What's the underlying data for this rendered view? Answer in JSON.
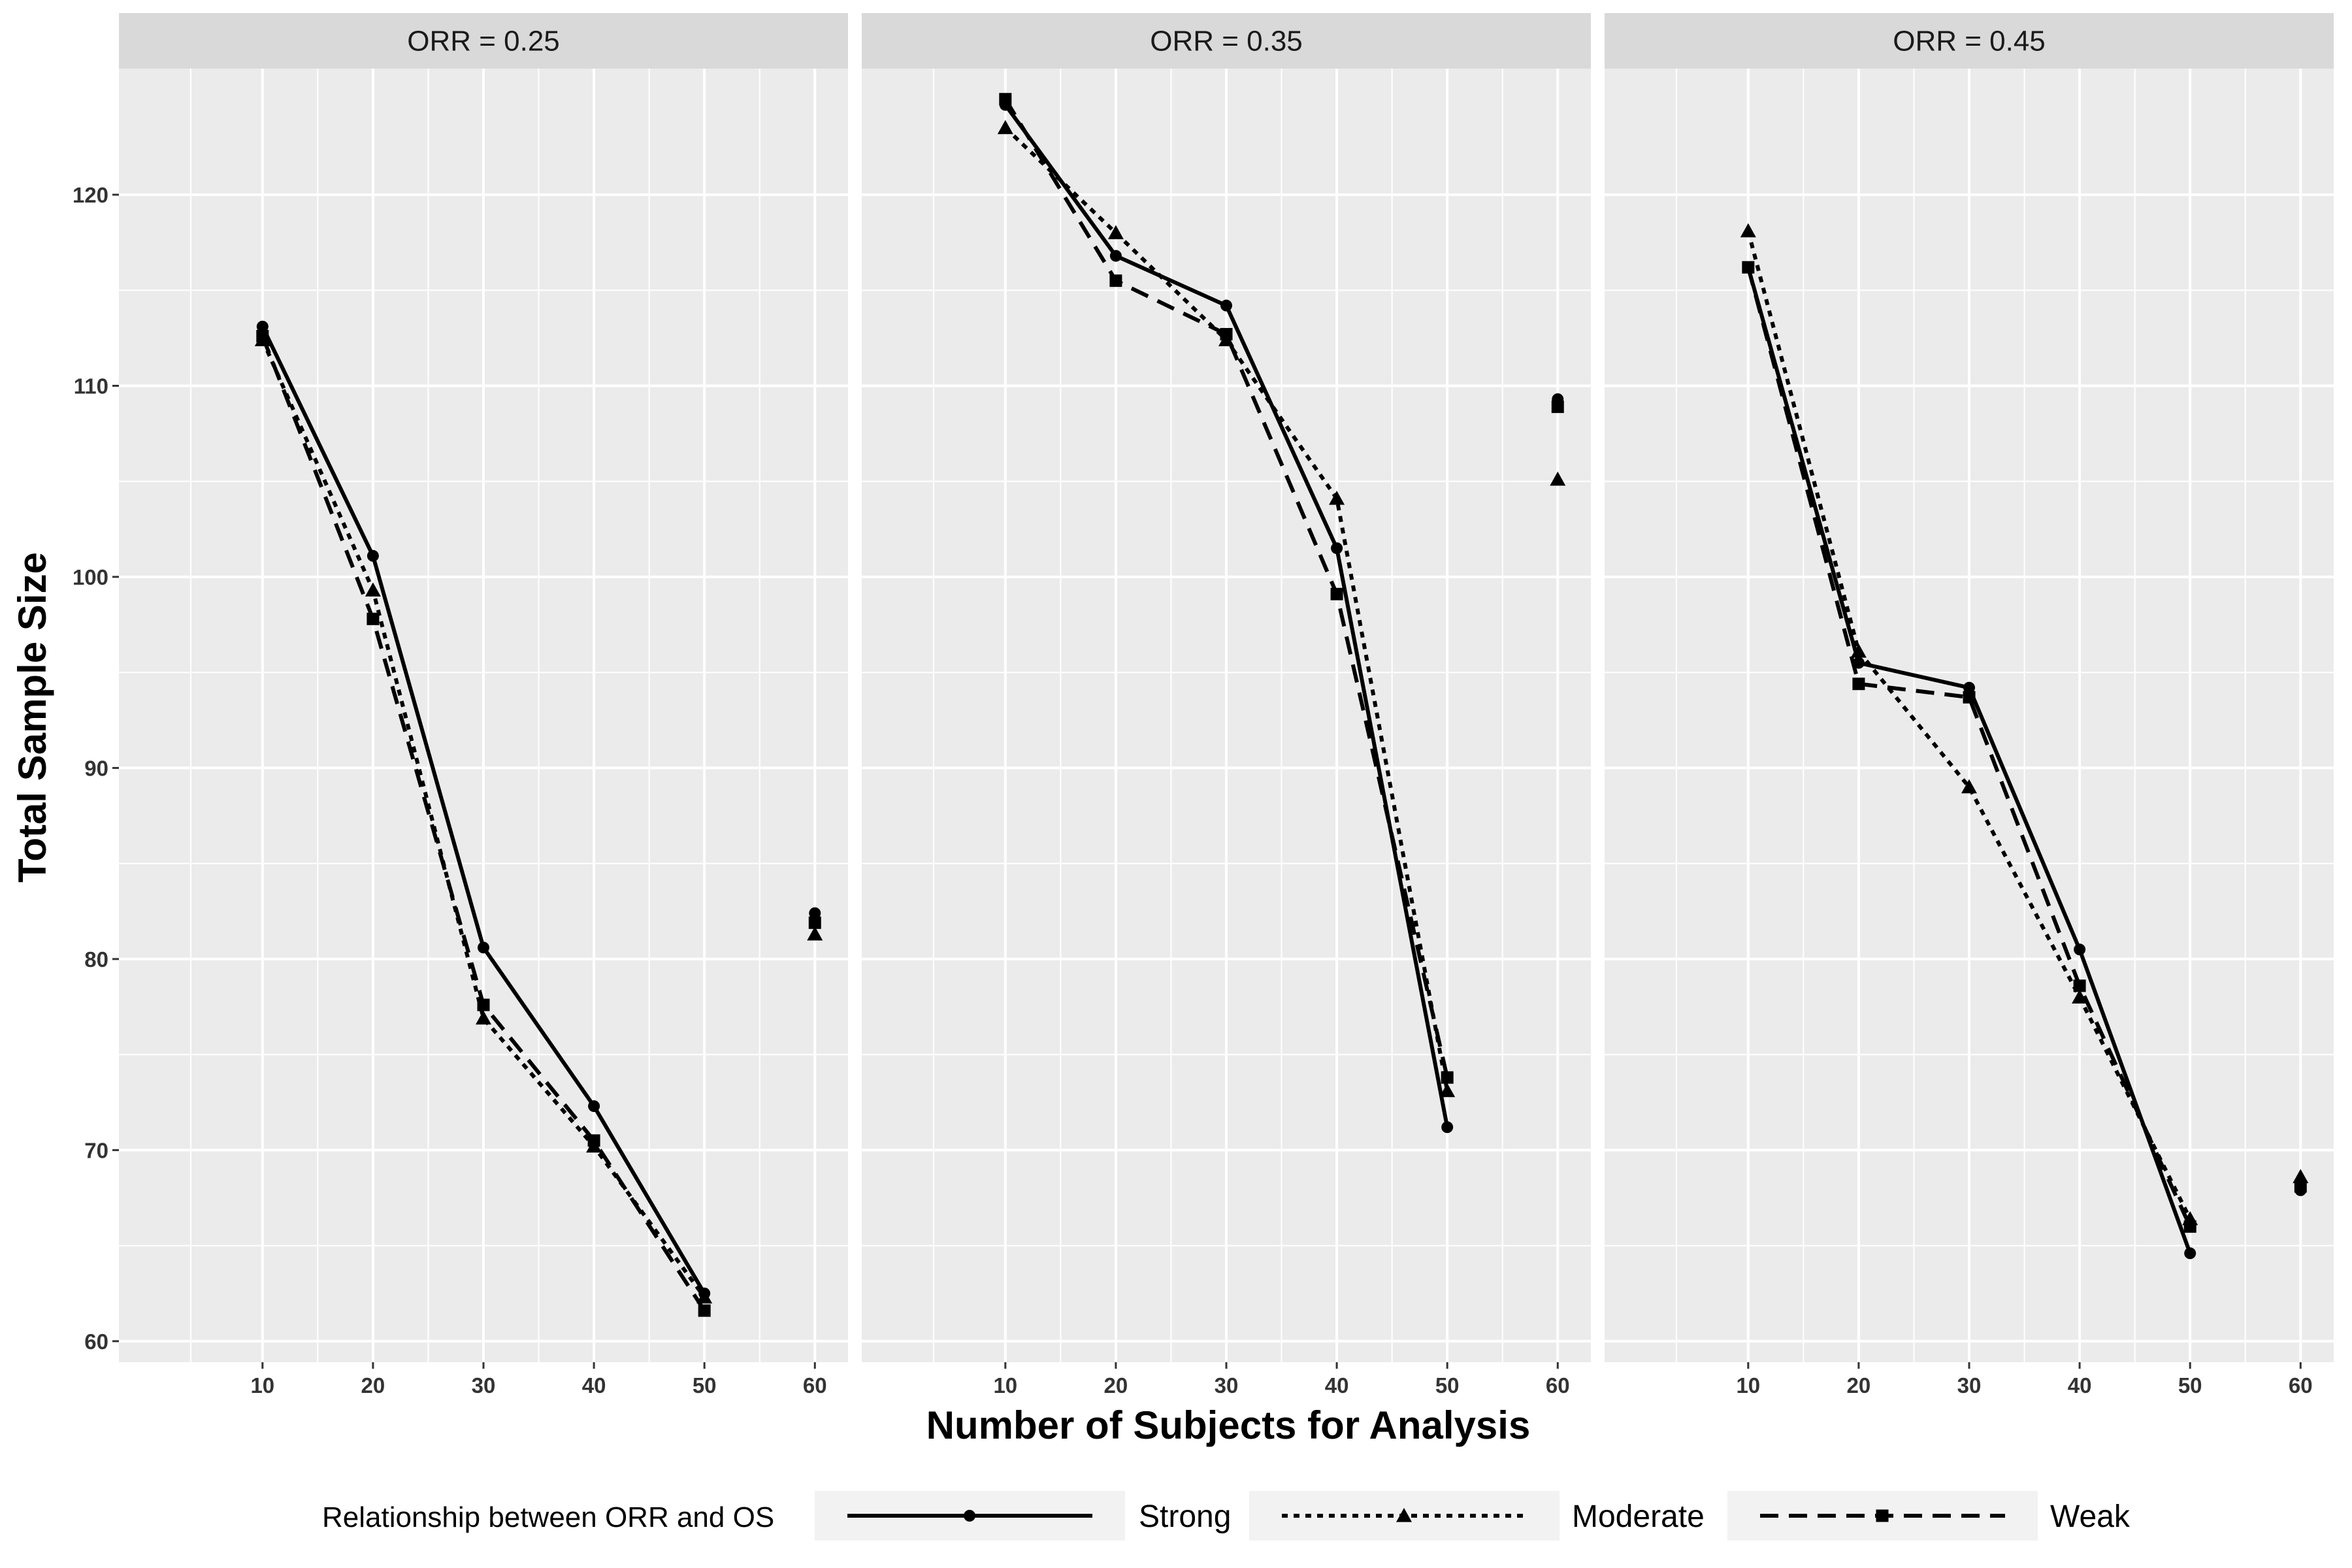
{
  "chart_data": {
    "type": "line",
    "facet_label_prefix": "ORR = ",
    "facets": [
      {
        "label": "ORR = 0.25",
        "series": [
          {
            "name": "Strong",
            "x": [
              10,
              20,
              30,
              40,
              50
            ],
            "values": [
              113.1,
              101.1,
              80.6,
              72.3,
              62.5
            ]
          },
          {
            "name": "Moderate",
            "x": [
              10,
              20,
              30,
              40,
              50
            ],
            "values": [
              112.4,
              99.3,
              76.9,
              70.2,
              62.3
            ]
          },
          {
            "name": "Weak",
            "x": [
              10,
              20,
              30,
              40,
              50
            ],
            "values": [
              112.6,
              97.8,
              77.6,
              70.5,
              61.6
            ]
          }
        ],
        "unconnected": [
          {
            "name": "Strong",
            "x": 60,
            "y": 82.4
          },
          {
            "name": "Moderate",
            "x": 60,
            "y": 81.3
          },
          {
            "name": "Weak",
            "x": 60,
            "y": 81.9
          }
        ]
      },
      {
        "label": "ORR = 0.35",
        "series": [
          {
            "name": "Strong",
            "x": [
              10,
              20,
              30,
              40,
              50
            ],
            "values": [
              124.7,
              116.8,
              114.2,
              101.5,
              71.2
            ]
          },
          {
            "name": "Moderate",
            "x": [
              10,
              20,
              30,
              40,
              50
            ],
            "values": [
              123.5,
              118.0,
              112.4,
              104.1,
              73.1
            ]
          },
          {
            "name": "Weak",
            "x": [
              10,
              20,
              30,
              40,
              50
            ],
            "values": [
              125.0,
              115.5,
              112.7,
              99.1,
              73.8
            ]
          }
        ],
        "unconnected": [
          {
            "name": "Strong",
            "x": 60,
            "y": 109.3
          },
          {
            "name": "Moderate",
            "x": 60,
            "y": 105.1
          },
          {
            "name": "Weak",
            "x": 60,
            "y": 108.9
          }
        ]
      },
      {
        "label": "ORR = 0.45",
        "series": [
          {
            "name": "Strong",
            "x": [
              10,
              20,
              30,
              40,
              50
            ],
            "values": [
              116.2,
              95.5,
              94.2,
              80.5,
              64.6
            ]
          },
          {
            "name": "Moderate",
            "x": [
              10,
              20,
              30,
              40,
              50
            ],
            "values": [
              118.1,
              96.1,
              89.0,
              78.0,
              66.4
            ]
          },
          {
            "name": "Weak",
            "x": [
              10,
              20,
              30,
              40,
              50
            ],
            "values": [
              116.2,
              94.4,
              93.7,
              78.6,
              66.0
            ]
          }
        ],
        "unconnected": [
          {
            "name": "Strong",
            "x": 60,
            "y": 67.9
          },
          {
            "name": "Moderate",
            "x": 60,
            "y": 68.6
          },
          {
            "name": "Weak",
            "x": 60,
            "y": 68.1
          }
        ]
      }
    ],
    "xlabel": "Number of Subjects for Analysis",
    "ylabel": "Total Sample Size",
    "x_ticks": [
      10,
      20,
      30,
      40,
      50,
      60
    ],
    "y_ticks": [
      60,
      70,
      80,
      90,
      100,
      110,
      120
    ],
    "xlim": [
      -3,
      63
    ],
    "ylim": [
      58.9,
      126.6
    ],
    "grid": true,
    "legend": {
      "title": "Relationship between ORR and OS",
      "position": "bottom",
      "entries": [
        {
          "name": "Strong",
          "linestyle": "solid",
          "marker": "circle"
        },
        {
          "name": "Moderate",
          "linestyle": "dotted",
          "marker": "triangle"
        },
        {
          "name": "Weak",
          "linestyle": "dashed",
          "marker": "square"
        }
      ]
    },
    "colors": {
      "line": "#000000",
      "panel_bg": "#ebebeb",
      "strip_bg": "#d9d9d9",
      "grid": "#ffffff"
    }
  }
}
